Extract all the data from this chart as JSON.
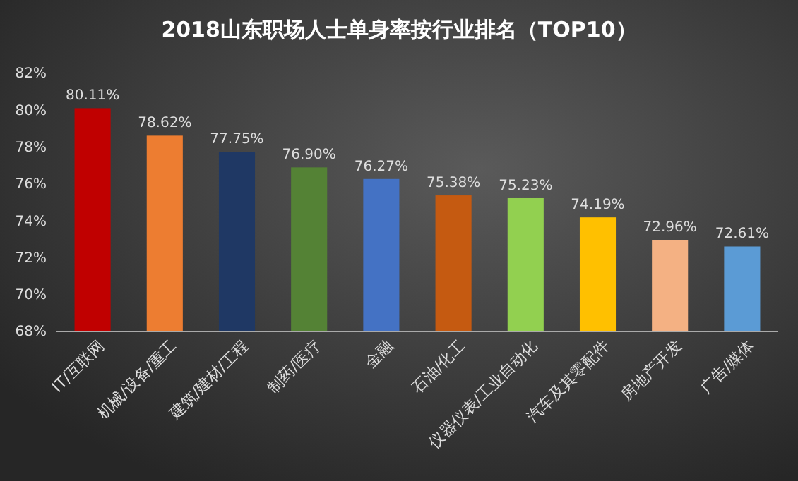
{
  "chart_data": {
    "type": "bar",
    "title": "2018山东职场人士单身率按行业排名（TOP10）",
    "categories": [
      "IT/互联网",
      "机械/设备/重工",
      "建筑/建材/工程",
      "制药/医疗",
      "金融",
      "石油/化工",
      "仪器仪表/工业自动化",
      "汽车及其零配件",
      "房地产开发",
      "广告/媒体"
    ],
    "values": [
      80.11,
      78.62,
      77.75,
      76.9,
      76.27,
      75.38,
      75.23,
      74.19,
      72.96,
      72.61
    ],
    "value_labels": [
      "80.11%",
      "78.62%",
      "77.75%",
      "76.90%",
      "76.27%",
      "75.38%",
      "75.23%",
      "74.19%",
      "72.96%",
      "72.61%"
    ],
    "colors": [
      "#c00000",
      "#ed7d31",
      "#1f3864",
      "#548235",
      "#4472c4",
      "#c55a11",
      "#92d050",
      "#ffc000",
      "#f4b183",
      "#5b9bd5"
    ],
    "ylim": [
      68,
      82
    ],
    "yticks": [
      {
        "value": 68,
        "label": "68%"
      },
      {
        "value": 70,
        "label": "70%"
      },
      {
        "value": 72,
        "label": "72%"
      },
      {
        "value": 74,
        "label": "74%"
      },
      {
        "value": 76,
        "label": "76%"
      },
      {
        "value": 78,
        "label": "78%"
      },
      {
        "value": 80,
        "label": "80%"
      },
      {
        "value": 82,
        "label": "82%"
      }
    ],
    "data_labels": false
  }
}
